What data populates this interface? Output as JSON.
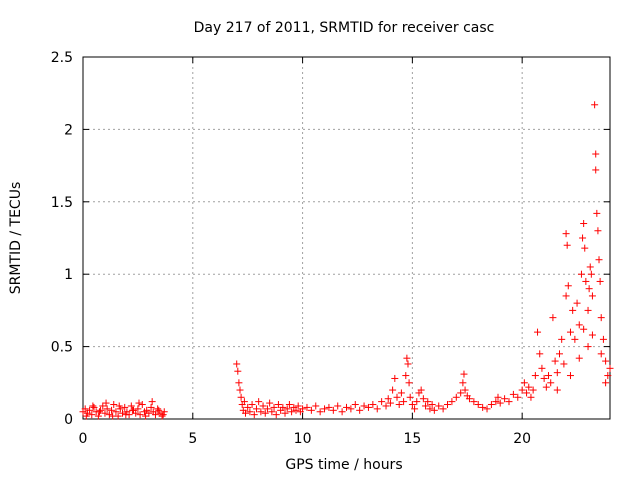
{
  "chart_data": {
    "type": "scatter",
    "title": "Day 217 of 2011, SRMTID for receiver casc",
    "xlabel": "GPS time / hours",
    "ylabel": "SRMTID / TECUs",
    "xlim": [
      0,
      24
    ],
    "ylim": [
      0,
      2.5
    ],
    "grid": true,
    "marker": "+",
    "color": "#ff0000",
    "x_ticks": [
      0,
      5,
      10,
      15,
      20
    ],
    "x_tick_labels": [
      "0",
      "5",
      "10",
      "15",
      "20"
    ],
    "y_ticks": [
      0,
      0.5,
      1,
      1.5,
      2,
      2.5
    ],
    "y_tick_labels": [
      "0",
      "0.5",
      "1",
      "1.5",
      "2",
      "2.5"
    ],
    "series": [
      {
        "name": "SRMTID",
        "points": [
          [
            0.0,
            0.05
          ],
          [
            0.1,
            0.07
          ],
          [
            0.2,
            0.04
          ],
          [
            0.3,
            0.06
          ],
          [
            0.4,
            0.03
          ],
          [
            0.5,
            0.08
          ],
          [
            0.6,
            0.05
          ],
          [
            0.7,
            0.02
          ],
          [
            0.8,
            0.06
          ],
          [
            0.9,
            0.09
          ],
          [
            1.0,
            0.04
          ],
          [
            1.1,
            0.07
          ],
          [
            1.2,
            0.03
          ],
          [
            1.3,
            0.06
          ],
          [
            1.4,
            0.1
          ],
          [
            1.5,
            0.05
          ],
          [
            1.6,
            0.02
          ],
          [
            1.7,
            0.07
          ],
          [
            1.8,
            0.04
          ],
          [
            1.9,
            0.08
          ],
          [
            2.0,
            0.05
          ],
          [
            2.1,
            0.03
          ],
          [
            2.2,
            0.09
          ],
          [
            2.3,
            0.06
          ],
          [
            2.4,
            0.04
          ],
          [
            2.5,
            0.07
          ],
          [
            2.6,
            0.03
          ],
          [
            2.7,
            0.1
          ],
          [
            2.8,
            0.05
          ],
          [
            2.9,
            0.06
          ],
          [
            3.0,
            0.04
          ],
          [
            3.1,
            0.08
          ],
          [
            3.2,
            0.05
          ],
          [
            3.3,
            0.03
          ],
          [
            3.4,
            0.07
          ],
          [
            3.5,
            0.04
          ],
          [
            3.6,
            0.02
          ],
          [
            3.7,
            0.05
          ],
          [
            0.15,
            0.02
          ],
          [
            0.45,
            0.09
          ],
          [
            0.75,
            0.05
          ],
          [
            1.05,
            0.11
          ],
          [
            1.35,
            0.02
          ],
          [
            1.65,
            0.09
          ],
          [
            1.95,
            0.03
          ],
          [
            2.25,
            0.06
          ],
          [
            2.55,
            0.11
          ],
          [
            2.85,
            0.02
          ],
          [
            3.15,
            0.12
          ],
          [
            3.45,
            0.06
          ],
          [
            3.65,
            0.03
          ],
          [
            7.0,
            0.38
          ],
          [
            7.05,
            0.33
          ],
          [
            7.1,
            0.25
          ],
          [
            7.15,
            0.2
          ],
          [
            7.2,
            0.15
          ],
          [
            7.25,
            0.1
          ],
          [
            7.3,
            0.06
          ],
          [
            7.35,
            0.12
          ],
          [
            7.4,
            0.04
          ],
          [
            7.5,
            0.08
          ],
          [
            7.6,
            0.05
          ],
          [
            7.7,
            0.1
          ],
          [
            7.8,
            0.03
          ],
          [
            7.9,
            0.07
          ],
          [
            8.0,
            0.12
          ],
          [
            8.1,
            0.05
          ],
          [
            8.2,
            0.09
          ],
          [
            8.3,
            0.04
          ],
          [
            8.4,
            0.07
          ],
          [
            8.5,
            0.11
          ],
          [
            8.6,
            0.05
          ],
          [
            8.7,
            0.08
          ],
          [
            8.8,
            0.03
          ],
          [
            8.9,
            0.1
          ],
          [
            9.0,
            0.06
          ],
          [
            9.1,
            0.08
          ],
          [
            9.2,
            0.04
          ],
          [
            9.3,
            0.07
          ],
          [
            9.4,
            0.1
          ],
          [
            9.5,
            0.05
          ],
          [
            9.6,
            0.08
          ],
          [
            9.7,
            0.06
          ],
          [
            9.8,
            0.09
          ],
          [
            9.9,
            0.05
          ],
          [
            10.0,
            0.07
          ],
          [
            10.2,
            0.08
          ],
          [
            10.4,
            0.06
          ],
          [
            10.6,
            0.09
          ],
          [
            10.8,
            0.05
          ],
          [
            11.0,
            0.07
          ],
          [
            11.2,
            0.08
          ],
          [
            11.4,
            0.06
          ],
          [
            11.6,
            0.09
          ],
          [
            11.8,
            0.05
          ],
          [
            12.0,
            0.08
          ],
          [
            12.2,
            0.07
          ],
          [
            12.4,
            0.1
          ],
          [
            12.6,
            0.06
          ],
          [
            12.8,
            0.09
          ],
          [
            13.0,
            0.08
          ],
          [
            13.2,
            0.1
          ],
          [
            13.4,
            0.07
          ],
          [
            13.6,
            0.12
          ],
          [
            13.8,
            0.09
          ],
          [
            13.9,
            0.14
          ],
          [
            14.0,
            0.11
          ],
          [
            14.1,
            0.2
          ],
          [
            14.2,
            0.28
          ],
          [
            14.3,
            0.15
          ],
          [
            14.4,
            0.1
          ],
          [
            14.5,
            0.18
          ],
          [
            14.6,
            0.12
          ],
          [
            14.7,
            0.3
          ],
          [
            14.75,
            0.42
          ],
          [
            14.8,
            0.38
          ],
          [
            14.85,
            0.25
          ],
          [
            14.9,
            0.15
          ],
          [
            15.0,
            0.1
          ],
          [
            15.1,
            0.07
          ],
          [
            15.2,
            0.12
          ],
          [
            15.3,
            0.18
          ],
          [
            15.4,
            0.2
          ],
          [
            15.5,
            0.14
          ],
          [
            15.6,
            0.09
          ],
          [
            15.7,
            0.12
          ],
          [
            15.8,
            0.07
          ],
          [
            15.9,
            0.1
          ],
          [
            16.0,
            0.06
          ],
          [
            16.2,
            0.09
          ],
          [
            16.4,
            0.07
          ],
          [
            16.6,
            0.1
          ],
          [
            16.8,
            0.12
          ],
          [
            17.0,
            0.15
          ],
          [
            17.2,
            0.18
          ],
          [
            17.3,
            0.25
          ],
          [
            17.35,
            0.31
          ],
          [
            17.4,
            0.2
          ],
          [
            17.5,
            0.16
          ],
          [
            17.6,
            0.14
          ],
          [
            17.8,
            0.12
          ],
          [
            18.0,
            0.1
          ],
          [
            18.2,
            0.08
          ],
          [
            18.4,
            0.07
          ],
          [
            18.6,
            0.1
          ],
          [
            18.8,
            0.12
          ],
          [
            18.9,
            0.15
          ],
          [
            19.0,
            0.11
          ],
          [
            19.2,
            0.14
          ],
          [
            19.4,
            0.12
          ],
          [
            19.6,
            0.17
          ],
          [
            19.8,
            0.15
          ],
          [
            20.0,
            0.2
          ],
          [
            20.1,
            0.25
          ],
          [
            20.2,
            0.18
          ],
          [
            20.3,
            0.22
          ],
          [
            20.4,
            0.15
          ],
          [
            20.5,
            0.2
          ],
          [
            20.6,
            0.3
          ],
          [
            20.7,
            0.6
          ],
          [
            20.8,
            0.45
          ],
          [
            20.9,
            0.35
          ],
          [
            21.0,
            0.28
          ],
          [
            21.1,
            0.22
          ],
          [
            21.2,
            0.3
          ],
          [
            21.3,
            0.25
          ],
          [
            21.4,
            0.7
          ],
          [
            21.5,
            0.4
          ],
          [
            21.6,
            0.32
          ],
          [
            21.7,
            0.45
          ],
          [
            21.8,
            0.55
          ],
          [
            21.9,
            0.38
          ],
          [
            22.0,
            0.85
          ],
          [
            22.0,
            1.28
          ],
          [
            22.05,
            1.2
          ],
          [
            22.1,
            0.92
          ],
          [
            22.2,
            0.6
          ],
          [
            22.3,
            0.75
          ],
          [
            22.4,
            0.55
          ],
          [
            22.5,
            0.8
          ],
          [
            22.6,
            0.65
          ],
          [
            22.7,
            1.0
          ],
          [
            22.75,
            1.25
          ],
          [
            22.8,
            1.35
          ],
          [
            22.85,
            1.18
          ],
          [
            22.9,
            0.95
          ],
          [
            23.0,
            0.75
          ],
          [
            23.05,
            0.9
          ],
          [
            23.1,
            1.05
          ],
          [
            23.15,
            1.0
          ],
          [
            23.2,
            0.85
          ],
          [
            23.3,
            2.17
          ],
          [
            23.35,
            1.83
          ],
          [
            23.35,
            1.72
          ],
          [
            23.4,
            1.42
          ],
          [
            23.45,
            1.3
          ],
          [
            23.5,
            1.1
          ],
          [
            23.55,
            0.95
          ],
          [
            23.6,
            0.7
          ],
          [
            23.7,
            0.55
          ],
          [
            23.8,
            0.4
          ],
          [
            23.9,
            0.3
          ],
          [
            24.0,
            0.35
          ],
          [
            21.6,
            0.2
          ],
          [
            22.2,
            0.3
          ],
          [
            22.6,
            0.42
          ],
          [
            23.0,
            0.5
          ],
          [
            23.6,
            0.45
          ],
          [
            22.8,
            0.62
          ],
          [
            23.2,
            0.58
          ],
          [
            23.8,
            0.25
          ]
        ]
      }
    ]
  }
}
